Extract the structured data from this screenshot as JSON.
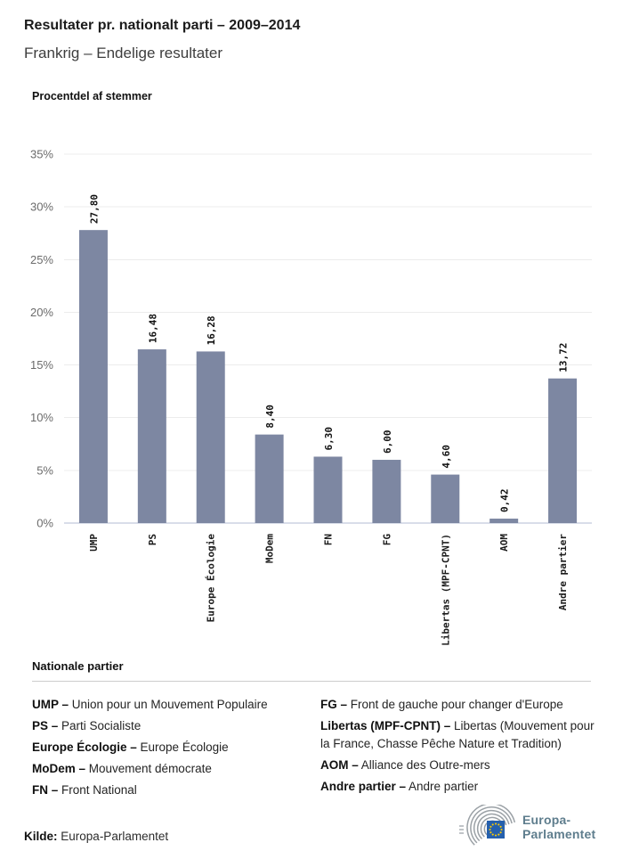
{
  "header": {
    "title": "Resultater pr. nationalt parti – 2009–2014",
    "subtitle": "Frankrig – Endelige resultater"
  },
  "chart_data": {
    "type": "bar",
    "title": "Procentdel af stemmer",
    "xlabel": "",
    "ylabel": "Procentdel af stemmer",
    "categories": [
      "UMP",
      "PS",
      "Europe Écologie",
      "MoDem",
      "FN",
      "FG",
      "Libertas (MPF-CPNT)",
      "AOM",
      "Andre partier"
    ],
    "values": [
      27.8,
      16.48,
      16.28,
      8.4,
      6.3,
      6.0,
      4.6,
      0.42,
      13.72
    ],
    "value_labels": [
      "27,80",
      "16,48",
      "16,28",
      "8,40",
      "6,30",
      "6,00",
      "4,60",
      "0,42",
      "13,72"
    ],
    "ylim": [
      0,
      35
    ],
    "ytick_step": 5,
    "ytick_labels": [
      "0%",
      "5%",
      "10%",
      "15%",
      "20%",
      "25%",
      "30%",
      "35%"
    ],
    "grid": true,
    "legend_position": "none",
    "bar_color": "#7d87a2",
    "gridline_color": "#ececec",
    "baseline_color": "#d9dde9"
  },
  "legend": {
    "heading": "Nationale partier",
    "separator": "–",
    "columns": [
      [
        {
          "term": "UMP",
          "definition": "Union pour un Mouvement Populaire"
        },
        {
          "term": "PS",
          "definition": "Parti Socialiste"
        },
        {
          "term": "Europe Écologie",
          "definition": "Europe Écologie"
        },
        {
          "term": "MoDem",
          "definition": "Mouvement démocrate"
        },
        {
          "term": "FN",
          "definition": "Front National"
        }
      ],
      [
        {
          "term": "FG",
          "definition": "Front de gauche pour changer d'Europe"
        },
        {
          "term": "Libertas (MPF-CPNT)",
          "definition": "Libertas (Mouvement pour la France, Chasse Pêche Nature et Tradition)"
        },
        {
          "term": "AOM",
          "definition": "Alliance des Outre-mers"
        },
        {
          "term": "Andre partier",
          "definition": "Andre partier"
        }
      ]
    ]
  },
  "footer": {
    "source_label": "Kilde:",
    "source_value": "Europa-Parlamentet",
    "logo_icon": "european-parliament-hemicycle-logo",
    "logo_text_line1": "Europa-",
    "logo_text_line2": "Parlamentet",
    "logo_colors": {
      "flag_blue": "#2560ad",
      "stars_yellow": "#ffcc00",
      "arcs_gray": "#9ba1a6",
      "text": "#5e7d8d"
    }
  }
}
